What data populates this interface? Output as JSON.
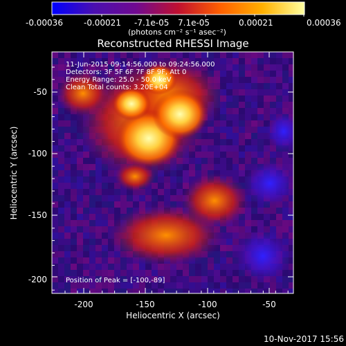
{
  "colorbar": {
    "tick_labels": [
      "-0.00036",
      "-0.00021",
      "-7.1e-05",
      "7.1e-05",
      "0.00021",
      "0.00036"
    ],
    "unit_label": "(photons cm⁻² s⁻¹ asec⁻²)",
    "colors": [
      "#0000ff",
      "#4a0fb0",
      "#700a90",
      "#c01030",
      "#ff6000",
      "#ffb000",
      "#ffffa0"
    ]
  },
  "image": {
    "title": "Reconstructed RHESSI Image",
    "info_lines": [
      "11-Jun-2015 09:14:56.000 to 09:24:56.000",
      "Detectors: 3F 5F 6F 7F 8F 9F, Att 0",
      "Energy Range: 25.0 - 50.0 keV",
      "Clean    Total counts: 3.20E+04"
    ],
    "peak_label": "Position of Peak = [-100,-89]"
  },
  "axes": {
    "x_title": "Heliocentric X (arcsec)",
    "y_title": "Heliocentric Y (arcsec)",
    "x_ticks": [
      "-200",
      "-150",
      "-100",
      "-50"
    ],
    "y_ticks": [
      "-50",
      "-100",
      "-150",
      "-200"
    ]
  },
  "footer": {
    "date": "10-Nov-2017 15:56"
  }
}
